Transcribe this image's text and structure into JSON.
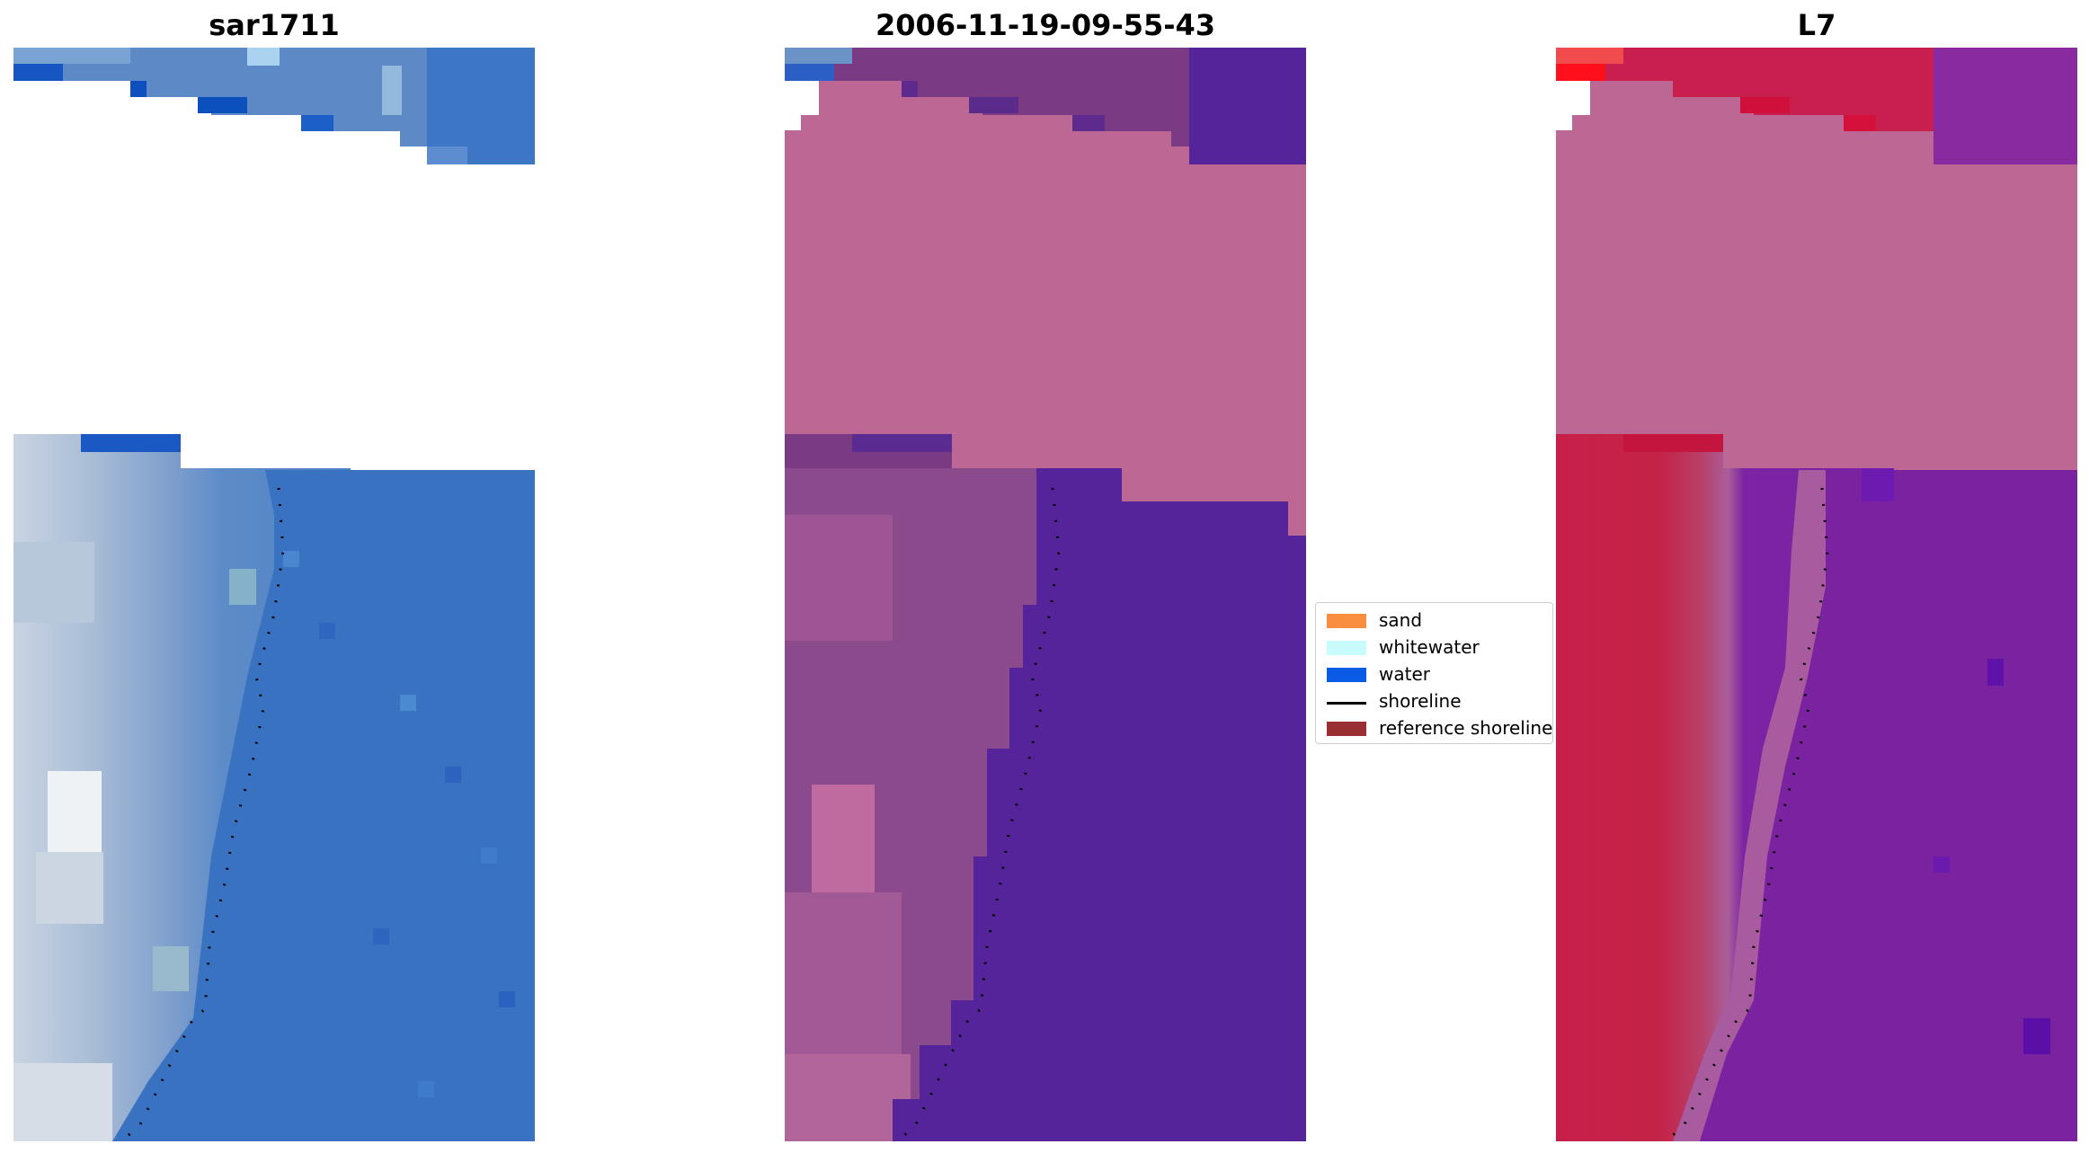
{
  "panels": [
    {
      "title": "sar1711"
    },
    {
      "title": "2006-11-19-09-55-43"
    },
    {
      "title": "L7"
    }
  ],
  "legend": {
    "placement": "center",
    "items": [
      {
        "label": "sand",
        "color": "#f98d40",
        "kind": "patch"
      },
      {
        "label": "whitewater",
        "color": "#c8fcfc",
        "kind": "patch"
      },
      {
        "label": "water",
        "color": "#0a5ae6",
        "kind": "patch"
      },
      {
        "label": "shoreline",
        "color": "#000000",
        "kind": "line"
      },
      {
        "label": "reference shoreline",
        "color": "#992f33",
        "kind": "patch"
      }
    ]
  },
  "colors": {
    "rgb_water": "#3a70c0",
    "rgb_land": "#98b4d0",
    "class_land": "#bd6795",
    "class_water": "#55249a",
    "class_shore": "#7a3a84",
    "l7_red": "#c81f49",
    "l7_purple": "#7a22a0",
    "l7_pink": "#bd6795"
  }
}
